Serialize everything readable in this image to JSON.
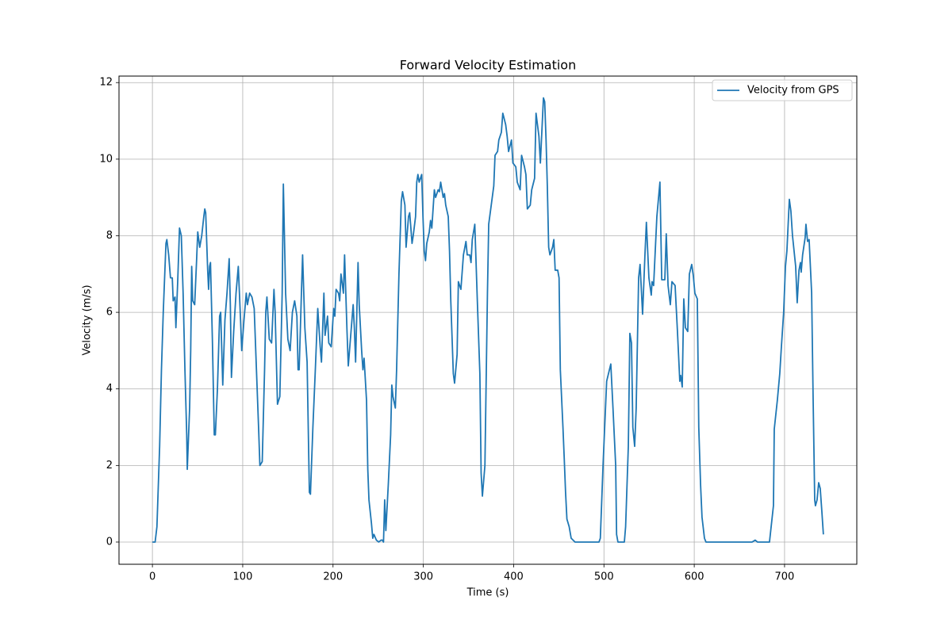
{
  "chart_data": {
    "type": "line",
    "title": "Forward Velocity Estimation",
    "x_label": "Time (s)",
    "y_label": "Velocity (m/s)",
    "xlim": [
      -37,
      780
    ],
    "ylim": [
      -0.58,
      12.17
    ],
    "xticks": [
      0,
      100,
      200,
      300,
      400,
      500,
      600,
      700
    ],
    "yticks": [
      0,
      2,
      4,
      6,
      8,
      10,
      12
    ],
    "grid": true,
    "legend": "upper right",
    "x": [
      0,
      3,
      5,
      8,
      10,
      12,
      15,
      16,
      18,
      20,
      22,
      23,
      25,
      26,
      28,
      30,
      32,
      34,
      36,
      38,
      38.6,
      41.2,
      42.4,
      43.5,
      44.6,
      46.8,
      49,
      50.2,
      52.4,
      54.6,
      56.9,
      58,
      59,
      61.2,
      62.2,
      63.3,
      64.3,
      66.4,
      68.5,
      69.7,
      72,
      74.4,
      75.6,
      77.9,
      80.3,
      82.6,
      85,
      86.3,
      87.5,
      90,
      92.6,
      95.1,
      97.6,
      98.9,
      101.4,
      103.9,
      105.2,
      107.7,
      110.2,
      112.7,
      115.2,
      117.7,
      119,
      121.6,
      124.2,
      125.5,
      126.8,
      129.4,
      132,
      134.6,
      135.9,
      138.5,
      141.1,
      143.7,
      145,
      147.5,
      150,
      152.5,
      155,
      157.5,
      160,
      161.3,
      162.5,
      165,
      166.3,
      168.8,
      171.3,
      173.8,
      175,
      177.7,
      180.4,
      183.1,
      185.8,
      187.2,
      189.9,
      191.2,
      193.9,
      195.3,
      198,
      200.7,
      202,
      203.4,
      206.1,
      207.4,
      208.8,
      211.5,
      212.8,
      215.5,
      216.9,
      219.6,
      222.3,
      223.6,
      225,
      227.7,
      229,
      231.7,
      233.1,
      234.4,
      237.1,
      238.5,
      239.8,
      242.5,
      244,
      245.3,
      248,
      250.6,
      253.2,
      254.6,
      255.9,
      257.2,
      258.5,
      261.2,
      263.8,
      265.1,
      266.4,
      269,
      270.4,
      273,
      275.6,
      277,
      279.6,
      280.9,
      283.6,
      284.9,
      287.5,
      288.8,
      291.4,
      292.7,
      294,
      295.4,
      298.2,
      299.6,
      301,
      302.4,
      303.8,
      306.6,
      308,
      309.4,
      312.2,
      313.6,
      316.4,
      317.8,
      319.2,
      320.6,
      322,
      323.4,
      324.8,
      327.6,
      329,
      330.4,
      333.2,
      334.6,
      337.4,
      338.8,
      341.6,
      344.4,
      347.2,
      348.6,
      351.4,
      352.8,
      354.2,
      357,
      359.8,
      362.6,
      364,
      365.4,
      368.2,
      371,
      372.4,
      375.2,
      378,
      379.4,
      382.2,
      383.6,
      386.4,
      388,
      391.2,
      392.8,
      394.4,
      397.6,
      399.2,
      402.4,
      404,
      407.2,
      408.8,
      412,
      413.6,
      415.2,
      418.4,
      420,
      423.2,
      424.8,
      428,
      429.6,
      433,
      434.4,
      435.9,
      437.3,
      438.8,
      440.2,
      443.1,
      444.5,
      446,
      448.8,
      450.3,
      451.7,
      454.6,
      456,
      457.5,
      459,
      461.5,
      463.7,
      468,
      494.5,
      496,
      499,
      503,
      507.6,
      510,
      513,
      514,
      515.5,
      522.6,
      524,
      527,
      528.7,
      530.5,
      532,
      534,
      535.7,
      538.4,
      540,
      542.8,
      545.4,
      547,
      549.8,
      552.4,
      553.3,
      555,
      558.6,
      562,
      564,
      567.4,
      569,
      571,
      573.5,
      575.3,
      578.8,
      581.4,
      584,
      585,
      586.7,
      588.4,
      590.2,
      592.8,
      594.6,
      597.2,
      599,
      600.7,
      603.4,
      605,
      607,
      608.6,
      611.3,
      613,
      664,
      667.5,
      670,
      683.3,
      687.7,
      688.6,
      692,
      694.7,
      696.5,
      699,
      701,
      702.6,
      704.4,
      705.3,
      707,
      708.8,
      712.3,
      714,
      716,
      717.6,
      718.4,
      720,
      722.8,
      723.7,
      725.5,
      727.2,
      730,
      731.6,
      733.4,
      734.2,
      736,
      737.8,
      739.5,
      741.3,
      743
    ],
    "series": [
      {
        "name": "Velocity from GPS",
        "color": "#1f77b4",
        "values": [
          0,
          0,
          0.4,
          2.5,
          4.5,
          6,
          7.8,
          7.9,
          7.5,
          6.9,
          6.9,
          6.3,
          6.4,
          5.6,
          6.8,
          8.2,
          8,
          6.5,
          4.5,
          2.8,
          1.9,
          3.5,
          5,
          7.2,
          6.3,
          6.2,
          7.4,
          8.1,
          7.7,
          8,
          8.5,
          8.7,
          8.6,
          7.1,
          6.6,
          7.2,
          7.3,
          5.3,
          2.8,
          2.8,
          4,
          5.9,
          6,
          4.1,
          5.8,
          6.5,
          7.4,
          6.2,
          4.3,
          5.5,
          6.5,
          7.2,
          5.8,
          5,
          5.8,
          6.5,
          6.2,
          6.5,
          6.4,
          6.1,
          4.5,
          2.9,
          2,
          2.1,
          4.5,
          6,
          6.4,
          5.3,
          5.2,
          6.6,
          6,
          3.6,
          3.8,
          6.5,
          9.35,
          6.5,
          5.3,
          5,
          6,
          6.3,
          5.9,
          4.5,
          4.5,
          6.5,
          7.5,
          5.6,
          4.7,
          1.3,
          1.25,
          3,
          4.5,
          6.1,
          5.1,
          4.7,
          6.5,
          5.4,
          5.9,
          5.2,
          5.1,
          6.1,
          5.9,
          6.6,
          6.5,
          6.3,
          7,
          6.5,
          7.5,
          5.5,
          4.6,
          5.4,
          6.2,
          5.6,
          4.7,
          7.3,
          6.2,
          5,
          4.5,
          4.8,
          3.7,
          1.9,
          1.1,
          0.5,
          0.1,
          0.2,
          0.05,
          0,
          0.05,
          0.05,
          0,
          1.1,
          0.3,
          1.5,
          2.8,
          4.1,
          3.8,
          3.5,
          4.5,
          7,
          8.9,
          9.15,
          8.8,
          7.7,
          8.5,
          8.6,
          7.8,
          8,
          8.5,
          9.4,
          9.6,
          9.4,
          9.6,
          8.5,
          7.6,
          7.35,
          7.8,
          8.1,
          8.4,
          8.2,
          9.2,
          9,
          9.2,
          9.15,
          9.4,
          9.2,
          9,
          9.1,
          8.8,
          8.5,
          7.6,
          6.3,
          4.4,
          4.15,
          4.9,
          6.8,
          6.6,
          7.5,
          7.85,
          7.5,
          7.5,
          7.3,
          7.9,
          8.3,
          6.3,
          4.4,
          1.8,
          1.2,
          2,
          6.5,
          8.3,
          8.8,
          9.3,
          10.1,
          10.2,
          10.5,
          10.7,
          11.2,
          10.9,
          10.6,
          10.2,
          10.5,
          9.9,
          9.8,
          9.4,
          9.2,
          10.1,
          9.8,
          9.6,
          8.7,
          8.8,
          9.2,
          9.5,
          11.2,
          10.6,
          9.9,
          11.6,
          11.5,
          10.5,
          9.3,
          7.7,
          7.5,
          7.7,
          7.9,
          7.1,
          7.1,
          6.9,
          4.5,
          3,
          2.2,
          1.3,
          0.6,
          0.4,
          0.1,
          0,
          0,
          0.1,
          2,
          4.2,
          4.65,
          3.5,
          2,
          0.2,
          0,
          0,
          0.4,
          2.5,
          5.45,
          5.2,
          3,
          2.5,
          3.5,
          6.9,
          7.25,
          5.95,
          7.5,
          8.35,
          6.9,
          6.45,
          6.8,
          6.7,
          8.5,
          9.4,
          6.85,
          6.85,
          8.05,
          6.7,
          6.2,
          6.8,
          6.7,
          5.5,
          4.2,
          4.35,
          4.05,
          6.35,
          5.6,
          5.5,
          7,
          7.25,
          6.95,
          6.5,
          6.35,
          3,
          1.5,
          0.65,
          0.1,
          0,
          0,
          0.05,
          0,
          0,
          0.95,
          2.95,
          3.7,
          4.4,
          5.1,
          6,
          7.2,
          7.6,
          8.5,
          8.95,
          8.65,
          8,
          7.2,
          6.25,
          7.1,
          7.3,
          7.05,
          7.5,
          7.95,
          8.3,
          7.85,
          7.9,
          6.5,
          3.8,
          1.1,
          0.95,
          1.1,
          1.55,
          1.4,
          0.8,
          0.2
        ]
      }
    ]
  }
}
